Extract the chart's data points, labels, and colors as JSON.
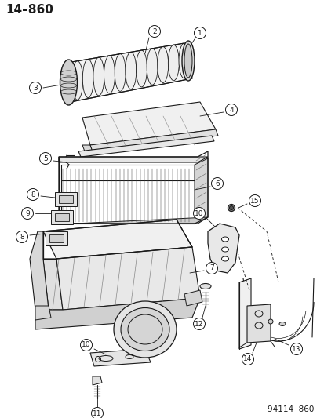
{
  "title": "14–860",
  "footer": "94114  860",
  "bg_color": "#ffffff",
  "lc": "#1a1a1a",
  "figsize": [
    4.14,
    5.33
  ],
  "dpi": 100,
  "title_fontsize": 11,
  "footer_fontsize": 7.5,
  "callout_fontsize": 6.5,
  "callout_r": 7.5
}
